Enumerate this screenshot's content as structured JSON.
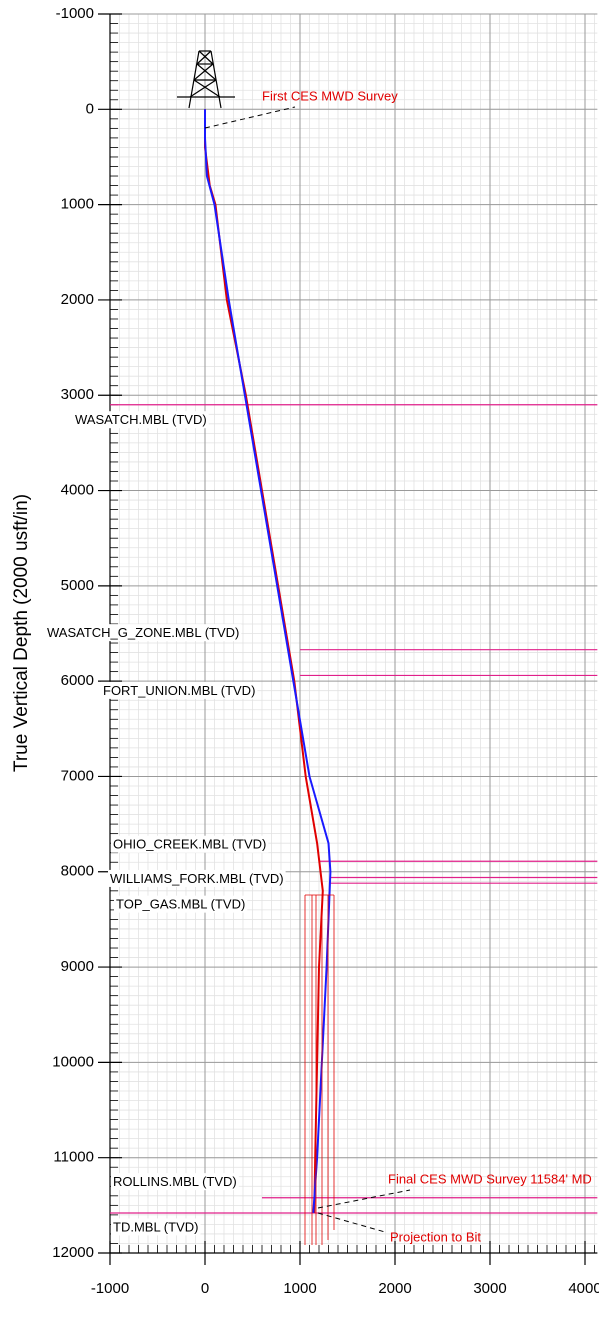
{
  "chart_data": {
    "type": "line",
    "ylabel": "True Vertical Depth (2000 usft/in)",
    "xlim": [
      -1000,
      4130
    ],
    "ylim": [
      -1000,
      12000
    ],
    "xticks": [
      -1000,
      0,
      1000,
      2000,
      3000,
      4000
    ],
    "yticks": [
      -1000,
      0,
      1000,
      2000,
      3000,
      4000,
      5000,
      6000,
      7000,
      8000,
      9000,
      10000,
      11000,
      12000
    ],
    "y_reversed": true,
    "grid": true,
    "series": [
      {
        "color": "#e00000",
        "x": [
          0,
          0,
          50,
          110,
          230,
          430,
          600,
          770,
          940,
          1060,
          1180,
          1240,
          1200,
          1180,
          1160,
          1150
        ],
        "values": [
          0,
          400,
          800,
          1000,
          2000,
          3000,
          4000,
          5000,
          6000,
          7000,
          7700,
          8200,
          9000,
          10000,
          11000,
          11580
        ]
      },
      {
        "color": "#1a1aff",
        "x": [
          0,
          0,
          20,
          100,
          250,
          420,
          590,
          760,
          930,
          1100,
          1300,
          1320,
          1280,
          1230,
          1180,
          1140
        ],
        "values": [
          0,
          300,
          700,
          1000,
          2000,
          3000,
          4000,
          5000,
          6000,
          7000,
          7700,
          8000,
          9000,
          10000,
          11000,
          11580
        ]
      }
    ],
    "formations": [
      {
        "label": "WASATCH.MBL (TVD)",
        "value": 3100
      },
      {
        "label": "WASATCH_G_ZONE.MBL (TVD)",
        "value": 5670
      },
      {
        "label": "FORT_UNION.MBL (TVD)",
        "value": 5940
      },
      {
        "label": "OHIO_CREEK.MBL (TVD)",
        "value": 7890
      },
      {
        "label": "WILLIAMS_FORK.MBL (TVD)",
        "value": 8060
      },
      {
        "label": "TOP_GAS.MBL (TVD)",
        "value": 8120
      },
      {
        "label": "ROLLINS.MBL (TVD)",
        "value": 11420
      },
      {
        "label": "TD.MBL (TVD)",
        "value": 11580
      }
    ],
    "annotations": [
      "First CES MWD Survey",
      "Final CES MWD Survey 11584' MD",
      "Projection to Bit"
    ]
  }
}
